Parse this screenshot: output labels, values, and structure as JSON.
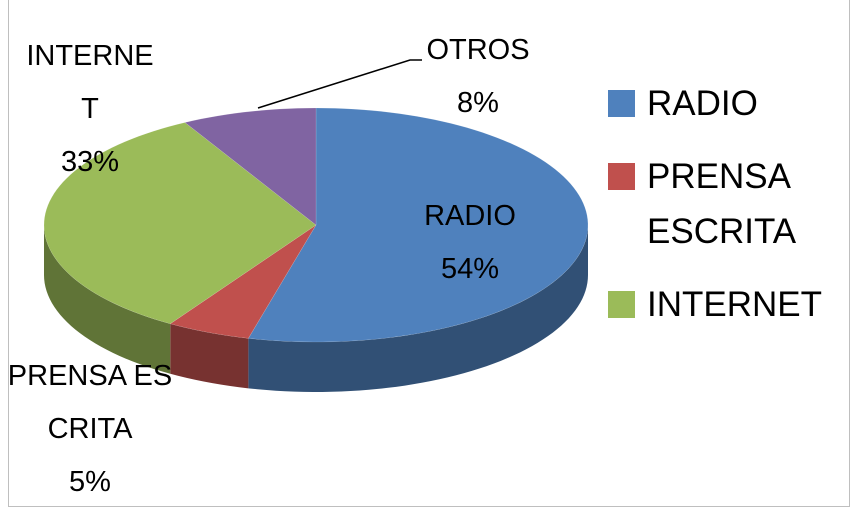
{
  "chart_data": {
    "type": "pie3d",
    "categories": [
      "RADIO",
      "PRENSA ESCRITA",
      "INTERNET",
      "OTROS"
    ],
    "values": [
      54,
      5,
      33,
      8
    ],
    "value_labels": [
      "54%",
      "5%",
      "33%",
      "8%"
    ],
    "colors": [
      "#4f81bd",
      "#c0504d",
      "#9bbb59",
      "#8064a2"
    ],
    "legend": "right"
  }
}
